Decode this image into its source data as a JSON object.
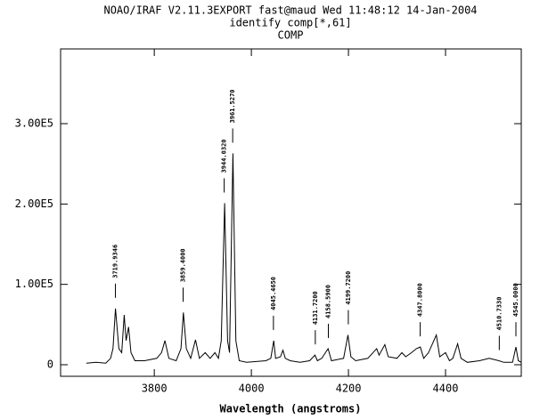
{
  "chart_data": {
    "type": "line",
    "title": "NOAO/IRAF V2.11.3EXPORT fast@maud Wed 11:48:12 14-Jan-2004",
    "subtitle": "identify comp[*,61]",
    "heading": "COMP",
    "x_label": "Wavelength (angstroms)",
    "color": "#000000",
    "x": [
      3660,
      3680,
      3700,
      3710,
      3715,
      3720,
      3727,
      3733,
      3738,
      3742,
      3747,
      3752,
      3760,
      3780,
      3805,
      3815,
      3822,
      3830,
      3845,
      3855,
      3860,
      3866,
      3875,
      3885,
      3893,
      3905,
      3915,
      3925,
      3932,
      3938,
      3945,
      3951,
      3955,
      3962,
      3968,
      3975,
      3990,
      4030,
      4040,
      4046,
      4050,
      4060,
      4065,
      4070,
      4080,
      4100,
      4120,
      4131,
      4136,
      4145,
      4158,
      4165,
      4190,
      4199,
      4205,
      4215,
      4240,
      4258,
      4263,
      4275,
      4282,
      4300,
      4310,
      4318,
      4330,
      4340,
      4348,
      4355,
      4365,
      4381,
      4388,
      4400,
      4408,
      4415,
      4425,
      4432,
      4445,
      4470,
      4490,
      4510,
      4520,
      4538,
      4545,
      4550,
      4556
    ],
    "values": [
      2000,
      3000,
      2000,
      8000,
      20000,
      70000,
      20000,
      15000,
      62000,
      30000,
      47000,
      15000,
      5000,
      5000,
      8000,
      15000,
      30000,
      8000,
      5000,
      20000,
      65000,
      20000,
      8000,
      31000,
      8000,
      15000,
      8000,
      15000,
      8000,
      30000,
      201000,
      30000,
      15000,
      263000,
      30000,
      5000,
      3000,
      5000,
      8000,
      30000,
      8000,
      10000,
      18000,
      8000,
      5000,
      3000,
      5000,
      12000,
      5000,
      8000,
      20000,
      5000,
      8000,
      37000,
      10000,
      5000,
      8000,
      20000,
      12000,
      25000,
      10000,
      8000,
      15000,
      10000,
      15000,
      20000,
      22000,
      8000,
      15000,
      37000,
      10000,
      15000,
      5000,
      8000,
      26000,
      8000,
      3000,
      5000,
      8000,
      5000,
      3000,
      3000,
      22000,
      5000,
      3000
    ],
    "xlim": [
      3607,
      4556
    ],
    "ylim": [
      -14400,
      393000
    ],
    "xticks": [
      3800,
      4000,
      4200,
      4400
    ],
    "yticks": [
      0,
      {
        "value": 100000,
        "label": "1.00E5"
      },
      {
        "value": 200000,
        "label": "2.00E5"
      },
      {
        "value": 300000,
        "label": "3.00E5"
      }
    ],
    "annotations": [
      {
        "value": 3719.9346,
        "label": "3719.9346"
      },
      {
        "value": 3859.4,
        "label": "3859.4000"
      },
      {
        "value": 3944.032,
        "label": "3944.0320"
      },
      {
        "value": 3961.527,
        "label": "3961.5270"
      },
      {
        "value": 4045.465,
        "label": "4045.4650"
      },
      {
        "value": 4131.72,
        "label": "4131.7200"
      },
      {
        "value": 4158.59,
        "label": "4158.5900"
      },
      {
        "value": 4199.72,
        "label": "4199.7200"
      },
      {
        "value": 4347.8,
        "label": "4347.8000"
      },
      {
        "value": 4510.733,
        "label": "4510.7330"
      },
      {
        "value": 4545.0,
        "label": "4545.0000"
      }
    ]
  }
}
